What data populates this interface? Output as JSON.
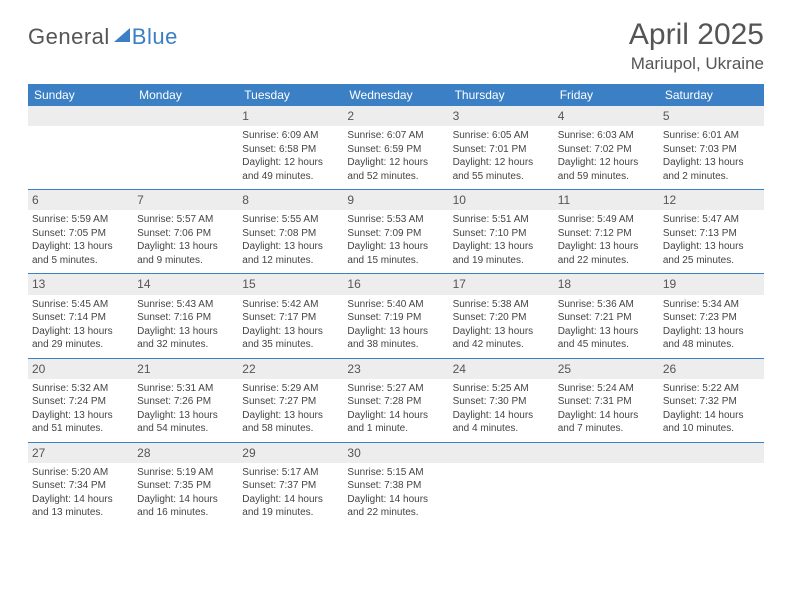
{
  "brand": {
    "part1": "General",
    "part2": "Blue"
  },
  "title": "April 2025",
  "location": "Mariupol, Ukraine",
  "colors": {
    "header_bg": "#3b7fc4",
    "header_text": "#ffffff",
    "daynum_bg": "#ededed",
    "rule": "#3b7fc4",
    "body_bg": "#ffffff"
  },
  "days_of_week": [
    "Sunday",
    "Monday",
    "Tuesday",
    "Wednesday",
    "Thursday",
    "Friday",
    "Saturday"
  ],
  "weeks": [
    [
      {
        "blank": true
      },
      {
        "blank": true
      },
      {
        "num": "1",
        "sunrise": "6:09 AM",
        "sunset": "6:58 PM",
        "daylight": "12 hours and 49 minutes."
      },
      {
        "num": "2",
        "sunrise": "6:07 AM",
        "sunset": "6:59 PM",
        "daylight": "12 hours and 52 minutes."
      },
      {
        "num": "3",
        "sunrise": "6:05 AM",
        "sunset": "7:01 PM",
        "daylight": "12 hours and 55 minutes."
      },
      {
        "num": "4",
        "sunrise": "6:03 AM",
        "sunset": "7:02 PM",
        "daylight": "12 hours and 59 minutes."
      },
      {
        "num": "5",
        "sunrise": "6:01 AM",
        "sunset": "7:03 PM",
        "daylight": "13 hours and 2 minutes."
      }
    ],
    [
      {
        "num": "6",
        "sunrise": "5:59 AM",
        "sunset": "7:05 PM",
        "daylight": "13 hours and 5 minutes."
      },
      {
        "num": "7",
        "sunrise": "5:57 AM",
        "sunset": "7:06 PM",
        "daylight": "13 hours and 9 minutes."
      },
      {
        "num": "8",
        "sunrise": "5:55 AM",
        "sunset": "7:08 PM",
        "daylight": "13 hours and 12 minutes."
      },
      {
        "num": "9",
        "sunrise": "5:53 AM",
        "sunset": "7:09 PM",
        "daylight": "13 hours and 15 minutes."
      },
      {
        "num": "10",
        "sunrise": "5:51 AM",
        "sunset": "7:10 PM",
        "daylight": "13 hours and 19 minutes."
      },
      {
        "num": "11",
        "sunrise": "5:49 AM",
        "sunset": "7:12 PM",
        "daylight": "13 hours and 22 minutes."
      },
      {
        "num": "12",
        "sunrise": "5:47 AM",
        "sunset": "7:13 PM",
        "daylight": "13 hours and 25 minutes."
      }
    ],
    [
      {
        "num": "13",
        "sunrise": "5:45 AM",
        "sunset": "7:14 PM",
        "daylight": "13 hours and 29 minutes."
      },
      {
        "num": "14",
        "sunrise": "5:43 AM",
        "sunset": "7:16 PM",
        "daylight": "13 hours and 32 minutes."
      },
      {
        "num": "15",
        "sunrise": "5:42 AM",
        "sunset": "7:17 PM",
        "daylight": "13 hours and 35 minutes."
      },
      {
        "num": "16",
        "sunrise": "5:40 AM",
        "sunset": "7:19 PM",
        "daylight": "13 hours and 38 minutes."
      },
      {
        "num": "17",
        "sunrise": "5:38 AM",
        "sunset": "7:20 PM",
        "daylight": "13 hours and 42 minutes."
      },
      {
        "num": "18",
        "sunrise": "5:36 AM",
        "sunset": "7:21 PM",
        "daylight": "13 hours and 45 minutes."
      },
      {
        "num": "19",
        "sunrise": "5:34 AM",
        "sunset": "7:23 PM",
        "daylight": "13 hours and 48 minutes."
      }
    ],
    [
      {
        "num": "20",
        "sunrise": "5:32 AM",
        "sunset": "7:24 PM",
        "daylight": "13 hours and 51 minutes."
      },
      {
        "num": "21",
        "sunrise": "5:31 AM",
        "sunset": "7:26 PM",
        "daylight": "13 hours and 54 minutes."
      },
      {
        "num": "22",
        "sunrise": "5:29 AM",
        "sunset": "7:27 PM",
        "daylight": "13 hours and 58 minutes."
      },
      {
        "num": "23",
        "sunrise": "5:27 AM",
        "sunset": "7:28 PM",
        "daylight": "14 hours and 1 minute."
      },
      {
        "num": "24",
        "sunrise": "5:25 AM",
        "sunset": "7:30 PM",
        "daylight": "14 hours and 4 minutes."
      },
      {
        "num": "25",
        "sunrise": "5:24 AM",
        "sunset": "7:31 PM",
        "daylight": "14 hours and 7 minutes."
      },
      {
        "num": "26",
        "sunrise": "5:22 AM",
        "sunset": "7:32 PM",
        "daylight": "14 hours and 10 minutes."
      }
    ],
    [
      {
        "num": "27",
        "sunrise": "5:20 AM",
        "sunset": "7:34 PM",
        "daylight": "14 hours and 13 minutes."
      },
      {
        "num": "28",
        "sunrise": "5:19 AM",
        "sunset": "7:35 PM",
        "daylight": "14 hours and 16 minutes."
      },
      {
        "num": "29",
        "sunrise": "5:17 AM",
        "sunset": "7:37 PM",
        "daylight": "14 hours and 19 minutes."
      },
      {
        "num": "30",
        "sunrise": "5:15 AM",
        "sunset": "7:38 PM",
        "daylight": "14 hours and 22 minutes."
      },
      {
        "blank": true
      },
      {
        "blank": true
      },
      {
        "blank": true
      }
    ]
  ],
  "labels": {
    "sunrise": "Sunrise: ",
    "sunset": "Sunset: ",
    "daylight": "Daylight: "
  }
}
